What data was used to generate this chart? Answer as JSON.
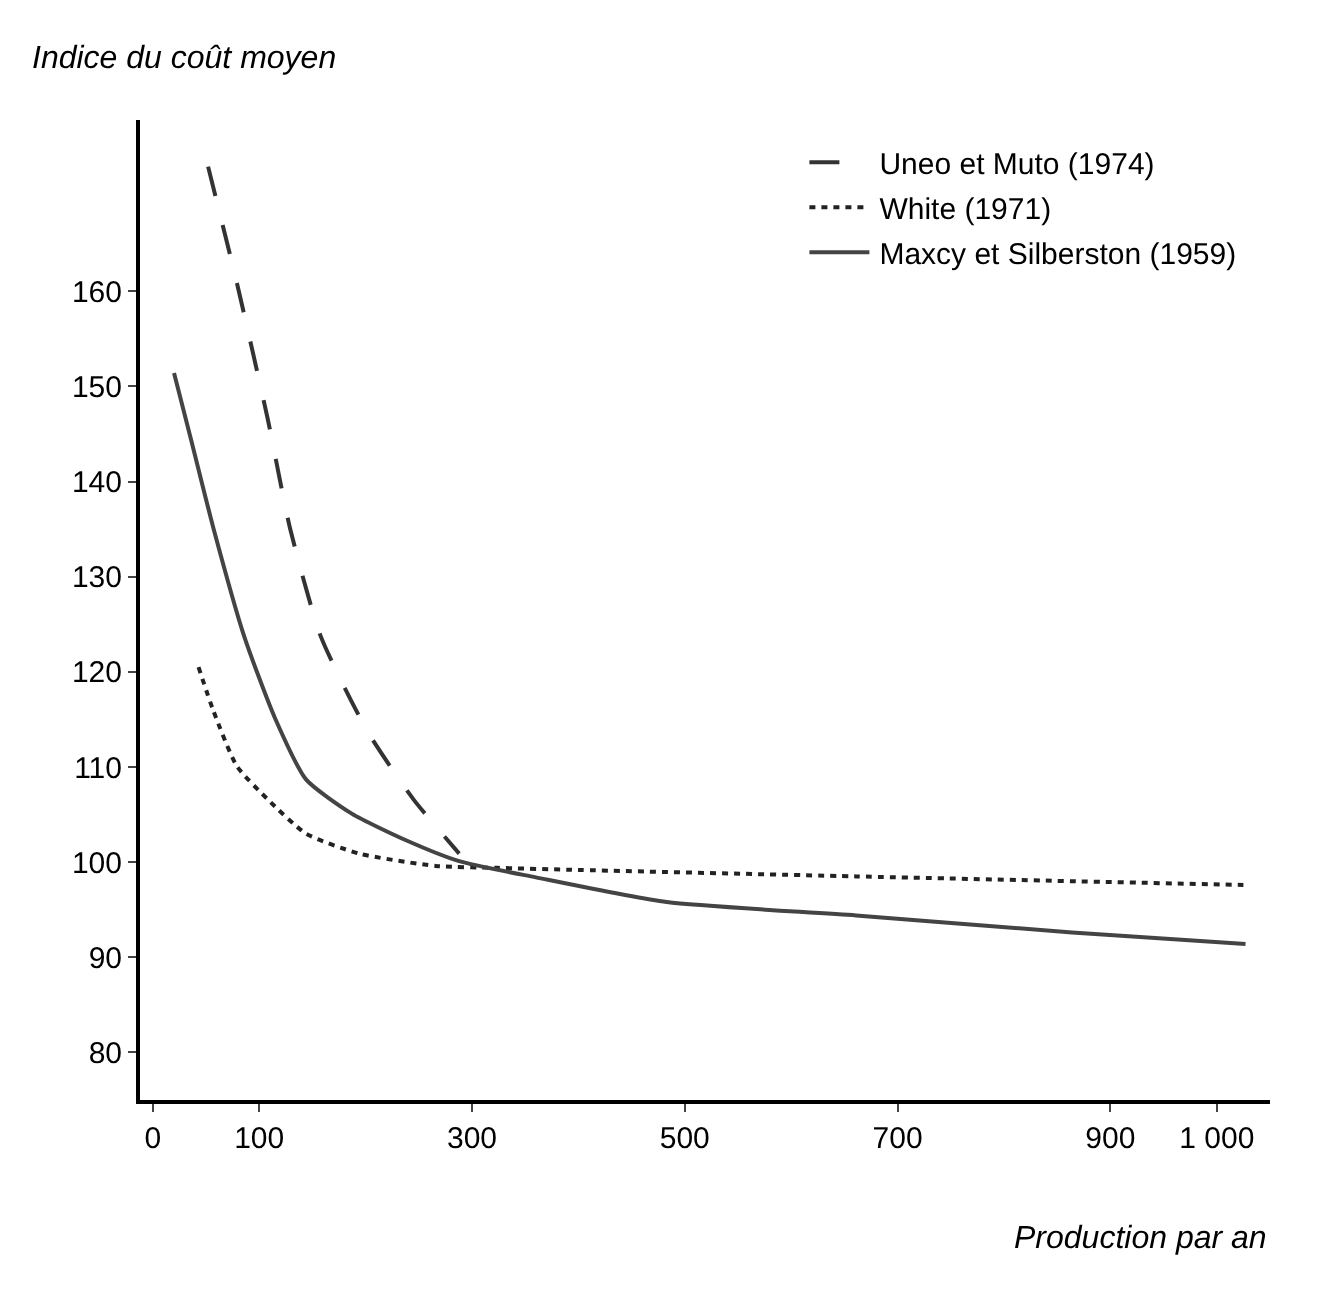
{
  "chart_data": {
    "type": "line",
    "ylabel": "Indice du coût moyen",
    "xlabel": "Production par an",
    "xlim": [
      -12,
      1050
    ],
    "ylim": [
      75,
      178
    ],
    "xticks": [
      0,
      100,
      300,
      500,
      700,
      900,
      {
        "value": 1000,
        "label": "1 000"
      }
    ],
    "yticks": [
      80,
      90,
      100,
      110,
      120,
      130,
      140,
      150,
      160
    ],
    "grid": false,
    "legend": "top right",
    "marker": "none",
    "series": [
      {
        "name": "Uneo et Muto (1974)",
        "color": "#333333",
        "line_style": "dashed",
        "x": [
          52,
          79,
          108,
          129,
          158,
          202,
          245,
          288
        ],
        "values": [
          173.1,
          160.9,
          146.6,
          135.1,
          123.7,
          113.7,
          106.6,
          100.9
        ]
      },
      {
        "name": "White (1971)",
        "color": "#222222",
        "line_style": "dotted",
        "x": [
          43,
          57,
          79,
          108,
          144,
          194,
          266,
          324,
          392,
          661,
          1025
        ],
        "values": [
          120.5,
          115.9,
          110.1,
          106.6,
          103.0,
          100.9,
          99.6,
          99.4,
          99.2,
          98.5,
          97.6
        ]
      },
      {
        "name": "Maxcy et Silberston (1959)",
        "color": "#444444",
        "line_style": "solid",
        "x": [
          20,
          36,
          57,
          86,
          115,
          144,
          187,
          238,
          288,
          360,
          483,
          661,
          864,
          1027
        ],
        "values": [
          151.4,
          144.4,
          135.1,
          123.7,
          115.1,
          108.7,
          105.1,
          102.3,
          100.1,
          98.4,
          95.8,
          94.4,
          92.6,
          91.4
        ]
      }
    ]
  }
}
